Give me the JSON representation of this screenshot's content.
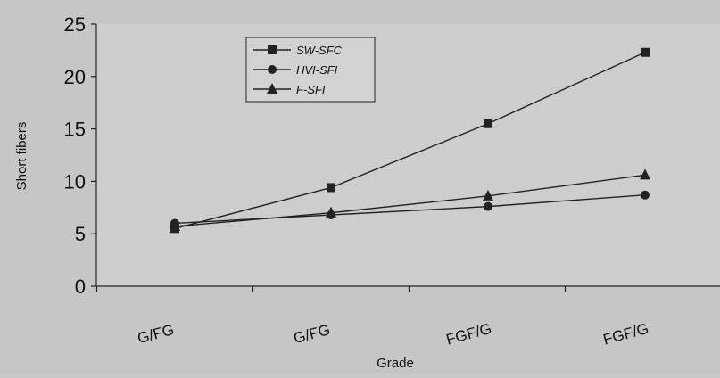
{
  "chart_data": {
    "type": "line",
    "categories": [
      "G/FG",
      "G/FG",
      "FGF/G",
      "FGF/G"
    ],
    "xlabel": "Grade",
    "ylabel": "Short fibers",
    "ylim": [
      0,
      25
    ],
    "yticks": [
      0,
      5,
      10,
      15,
      20,
      25
    ],
    "grid": false,
    "legend_position": "top-center",
    "series": [
      {
        "name": "SW-SFC",
        "marker": "square",
        "values": [
          5.5,
          9.4,
          15.5,
          22.3
        ]
      },
      {
        "name": "HVI-SFI",
        "marker": "circle",
        "values": [
          6.0,
          6.8,
          7.6,
          8.7
        ]
      },
      {
        "name": "F-SFI",
        "marker": "triangle",
        "values": [
          5.7,
          7.0,
          8.6,
          10.6
        ]
      }
    ],
    "colors": {
      "line": "#222222",
      "plot_bg": "#cbcbcb",
      "page_bg": "#c9c9c9"
    }
  }
}
